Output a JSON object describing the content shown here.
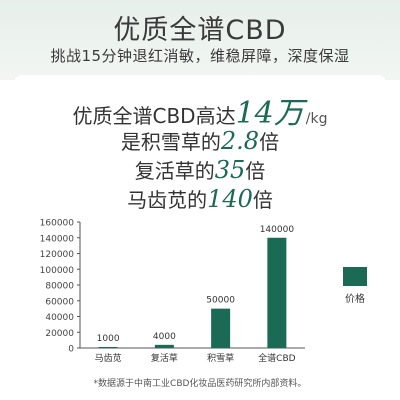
{
  "header": {
    "title": "优质全谱CBD",
    "subtitle": "挑战15分钟退红消敏，维稳屏障，深度保湿"
  },
  "highlights": {
    "line1": {
      "pre": "优质全谱CBD高达",
      "num": "14万",
      "unit": "/kg"
    },
    "line2": {
      "pre": "是积雪草的",
      "num": "2.8",
      "post": "倍"
    },
    "line3": {
      "pre": "复活草的",
      "num": "35",
      "post": "倍"
    },
    "line4": {
      "pre": "马齿苋的",
      "num": "140",
      "post": "倍"
    }
  },
  "footnote": "*数据源于中南工业CBD化妆品医药研究所内部资料。",
  "colors": {
    "bar": "#1b6a55",
    "axis": "#555555",
    "grid": "#e0e0e0"
  },
  "chart_data": {
    "type": "bar",
    "categories": [
      "马齿苋",
      "复活草",
      "积雪草",
      "全谱CBD"
    ],
    "values": [
      1000,
      4000,
      50000,
      140000
    ],
    "value_labels": [
      "1000",
      "4000",
      "50000",
      "140000"
    ],
    "yticks": [
      0,
      20000,
      40000,
      60000,
      80000,
      100000,
      120000,
      140000,
      160000
    ],
    "ylim": [
      0,
      160000
    ],
    "legend": {
      "name": "价格",
      "placement": "right"
    },
    "grid": false
  }
}
